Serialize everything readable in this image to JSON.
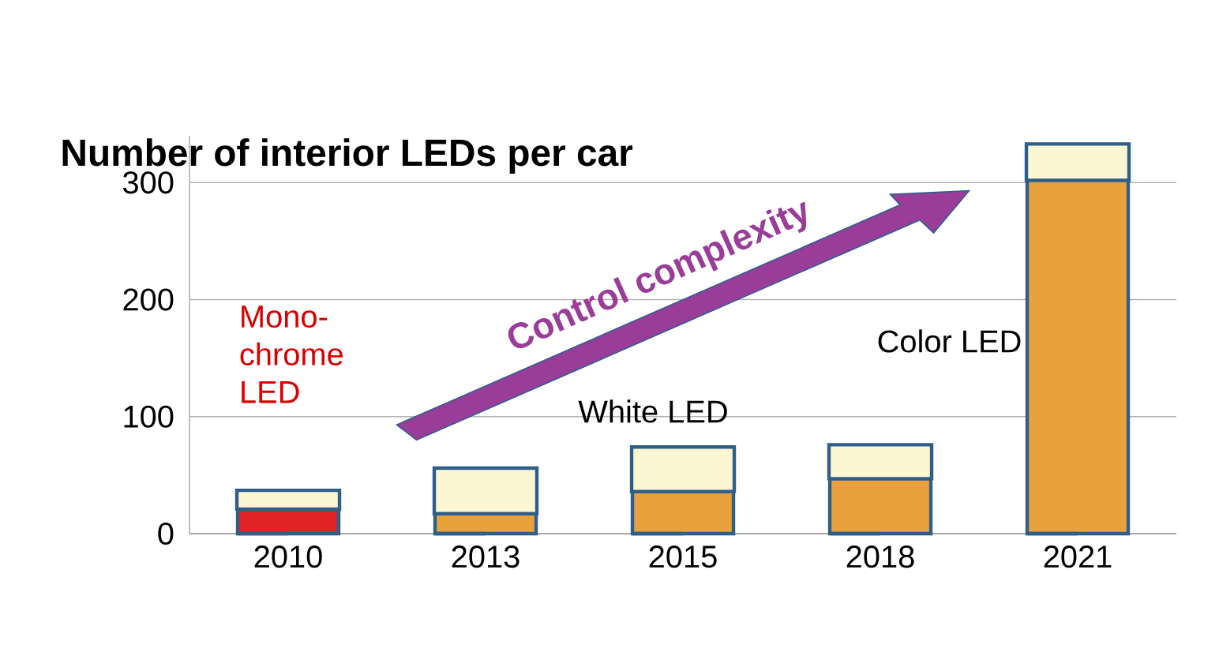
{
  "chart_data": {
    "type": "bar",
    "title": "Number of interior LEDs per car",
    "categories": [
      "2010",
      "2013",
      "2015",
      "2018",
      "2021"
    ],
    "stacked": true,
    "series": [
      {
        "color": "#e9a23b",
        "colors": [
          "#e02424",
          "#e9a23b",
          "#e9a23b",
          "#e9a23b",
          "#e9a23b"
        ],
        "values": [
          21,
          17,
          36,
          47,
          302
        ]
      },
      {
        "color": "#fdf6d2",
        "values": [
          16,
          39,
          38,
          29,
          31
        ]
      }
    ],
    "ylim": [
      0,
      340
    ],
    "yticks": [
      0,
      100,
      200,
      300
    ],
    "grid": "y",
    "annotations": [
      "Mono-chrome LED",
      "White LED",
      "Color LED",
      "Control complexity"
    ]
  }
}
